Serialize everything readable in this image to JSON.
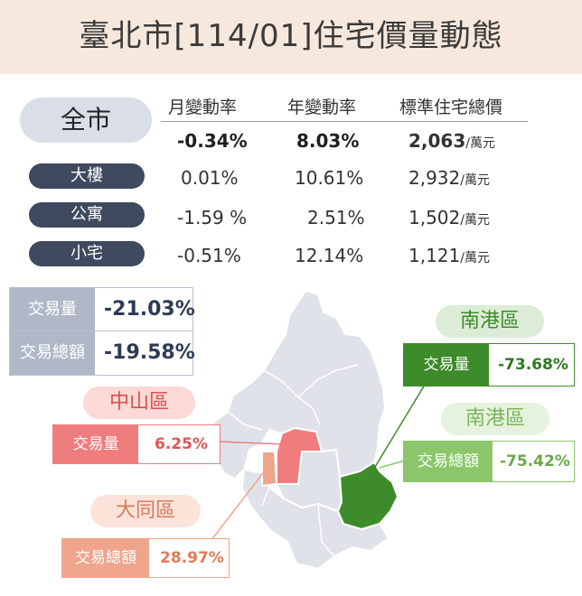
{
  "title": "臺北市[114/01]住宅價量動態",
  "columns": [
    "月變動率",
    "年變動率",
    "標準住宅總價"
  ],
  "rows": [
    {
      "name": "全市",
      "monthly": "-0.34%",
      "yearly": "8.03%",
      "price": "2,063",
      "unit": "/萬元"
    },
    {
      "name": "大樓",
      "monthly": "0.01%",
      "yearly": "10.61%",
      "price": "2,932",
      "unit": "/萬元"
    },
    {
      "name": "公寓",
      "monthly": "-1.59 %",
      "yearly": "2.51%",
      "price": "1,502",
      "unit": "/萬元"
    },
    {
      "name": "小宅",
      "monthly": "-0.51%",
      "yearly": "12.14%",
      "price": "1,121",
      "unit": "/萬元"
    }
  ],
  "city_stats": [
    {
      "label": "交易量",
      "value": "-21.03%"
    },
    {
      "label": "交易總額",
      "value": "-19.58%"
    }
  ],
  "districts": {
    "zhongshan": {
      "name": "中山區",
      "label": "交易量",
      "value": "6.25%"
    },
    "datong": {
      "name": "大同區",
      "label": "交易總額",
      "value": "28.97%"
    },
    "nangang_volume": {
      "name": "南港區",
      "label": "交易量",
      "value": "-73.68%"
    },
    "nangang_total": {
      "name": "南港區",
      "label": "交易總額",
      "value": "-75.42%"
    }
  },
  "colors": {
    "header_bg": "#f6e8dc",
    "pill_dark": "#3f4a5e",
    "map_fill": "#dfe2e8",
    "zhongshan": "#f07d7d",
    "datong": "#eea58c",
    "nangang": "#3d8b2a",
    "nangang_light": "#8bc76a"
  }
}
